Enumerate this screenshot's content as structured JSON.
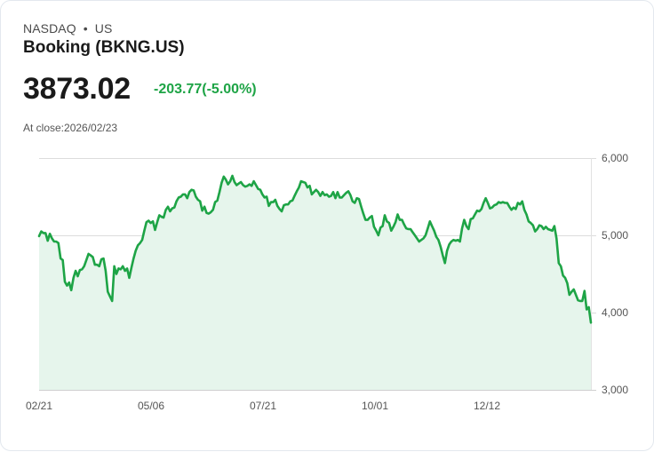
{
  "header": {
    "exchange": "NASDAQ",
    "separator": "•",
    "region": "US",
    "title": "Booking (BKNG.US)",
    "price": "3873.02",
    "change": "-203.77(-5.00%)",
    "close_label": "At close:2026/02/23"
  },
  "colors": {
    "line": "#1ea446",
    "fill": "#e6f5ec",
    "grid": "#dcdcdc",
    "change_text": "#1ea446"
  },
  "chart_data": {
    "type": "area",
    "title": "Booking (BKNG.US)",
    "xlabel": "",
    "ylabel": "",
    "ylim": [
      3000,
      6000
    ],
    "yticks": [
      "6,000",
      "5,000",
      "4,000",
      "3,000"
    ],
    "ytick_values": [
      6000,
      5000,
      4000,
      3000
    ],
    "xticks": [
      "02/21",
      "05/06",
      "07/21",
      "10/01",
      "12/12"
    ],
    "grid": true,
    "y_axis_position": "right",
    "points": [
      [
        0,
        4990
      ],
      [
        2,
        5050
      ],
      [
        4,
        5030
      ],
      [
        6,
        5030
      ],
      [
        8,
        4930
      ],
      [
        10,
        5020
      ],
      [
        12,
        4960
      ],
      [
        14,
        4920
      ],
      [
        16,
        4920
      ],
      [
        18,
        4900
      ],
      [
        20,
        4700
      ],
      [
        22,
        4680
      ],
      [
        24,
        4400
      ],
      [
        26,
        4350
      ],
      [
        28,
        4390
      ],
      [
        30,
        4290
      ],
      [
        32,
        4450
      ],
      [
        34,
        4540
      ],
      [
        36,
        4470
      ],
      [
        38,
        4550
      ],
      [
        40,
        4560
      ],
      [
        42,
        4600
      ],
      [
        44,
        4680
      ],
      [
        46,
        4760
      ],
      [
        48,
        4740
      ],
      [
        50,
        4720
      ],
      [
        52,
        4620
      ],
      [
        54,
        4620
      ],
      [
        56,
        4600
      ],
      [
        58,
        4690
      ],
      [
        60,
        4700
      ],
      [
        62,
        4540
      ],
      [
        64,
        4270
      ],
      [
        66,
        4210
      ],
      [
        68,
        4150
      ],
      [
        70,
        4600
      ],
      [
        72,
        4500
      ],
      [
        74,
        4570
      ],
      [
        76,
        4560
      ],
      [
        78,
        4600
      ],
      [
        80,
        4540
      ],
      [
        82,
        4570
      ],
      [
        84,
        4450
      ],
      [
        86,
        4580
      ],
      [
        88,
        4700
      ],
      [
        90,
        4800
      ],
      [
        92,
        4870
      ],
      [
        94,
        4900
      ],
      [
        96,
        4940
      ],
      [
        98,
        5060
      ],
      [
        100,
        5170
      ],
      [
        102,
        5190
      ],
      [
        104,
        5160
      ],
      [
        106,
        5180
      ],
      [
        108,
        5070
      ],
      [
        110,
        5170
      ],
      [
        112,
        5260
      ],
      [
        114,
        5240
      ],
      [
        116,
        5230
      ],
      [
        118,
        5330
      ],
      [
        120,
        5370
      ],
      [
        122,
        5310
      ],
      [
        124,
        5350
      ],
      [
        126,
        5360
      ],
      [
        128,
        5440
      ],
      [
        130,
        5490
      ],
      [
        132,
        5500
      ],
      [
        134,
        5530
      ],
      [
        136,
        5530
      ],
      [
        138,
        5480
      ],
      [
        140,
        5560
      ],
      [
        142,
        5590
      ],
      [
        144,
        5580
      ],
      [
        146,
        5500
      ],
      [
        148,
        5460
      ],
      [
        150,
        5440
      ],
      [
        152,
        5320
      ],
      [
        154,
        5370
      ],
      [
        156,
        5290
      ],
      [
        158,
        5280
      ],
      [
        160,
        5300
      ],
      [
        162,
        5330
      ],
      [
        164,
        5430
      ],
      [
        166,
        5450
      ],
      [
        168,
        5560
      ],
      [
        170,
        5680
      ],
      [
        172,
        5760
      ],
      [
        174,
        5720
      ],
      [
        176,
        5660
      ],
      [
        178,
        5700
      ],
      [
        180,
        5770
      ],
      [
        182,
        5690
      ],
      [
        184,
        5650
      ],
      [
        186,
        5670
      ],
      [
        188,
        5690
      ],
      [
        190,
        5650
      ],
      [
        192,
        5630
      ],
      [
        194,
        5640
      ],
      [
        196,
        5660
      ],
      [
        198,
        5640
      ],
      [
        200,
        5700
      ],
      [
        202,
        5650
      ],
      [
        204,
        5600
      ],
      [
        206,
        5590
      ],
      [
        208,
        5530
      ],
      [
        210,
        5490
      ],
      [
        212,
        5500
      ],
      [
        214,
        5380
      ],
      [
        216,
        5430
      ],
      [
        218,
        5430
      ],
      [
        220,
        5460
      ],
      [
        222,
        5380
      ],
      [
        224,
        5340
      ],
      [
        226,
        5310
      ],
      [
        228,
        5390
      ],
      [
        230,
        5400
      ],
      [
        232,
        5400
      ],
      [
        234,
        5440
      ],
      [
        236,
        5450
      ],
      [
        238,
        5510
      ],
      [
        240,
        5570
      ],
      [
        242,
        5620
      ],
      [
        244,
        5700
      ],
      [
        246,
        5690
      ],
      [
        248,
        5680
      ],
      [
        250,
        5620
      ],
      [
        252,
        5640
      ],
      [
        254,
        5530
      ],
      [
        256,
        5560
      ],
      [
        258,
        5590
      ],
      [
        260,
        5560
      ],
      [
        262,
        5510
      ],
      [
        264,
        5560
      ],
      [
        266,
        5520
      ],
      [
        268,
        5530
      ],
      [
        270,
        5500
      ],
      [
        272,
        5510
      ],
      [
        274,
        5560
      ],
      [
        276,
        5480
      ],
      [
        278,
        5560
      ],
      [
        280,
        5490
      ],
      [
        282,
        5490
      ],
      [
        284,
        5520
      ],
      [
        286,
        5550
      ],
      [
        288,
        5570
      ],
      [
        290,
        5520
      ],
      [
        292,
        5440
      ],
      [
        294,
        5420
      ],
      [
        296,
        5480
      ],
      [
        298,
        5470
      ],
      [
        300,
        5370
      ],
      [
        302,
        5280
      ],
      [
        304,
        5200
      ],
      [
        306,
        5200
      ],
      [
        308,
        5230
      ],
      [
        310,
        5250
      ],
      [
        312,
        5110
      ],
      [
        314,
        5060
      ],
      [
        316,
        5000
      ],
      [
        318,
        5100
      ],
      [
        320,
        5120
      ],
      [
        322,
        5260
      ],
      [
        324,
        5180
      ],
      [
        326,
        5160
      ],
      [
        328,
        5060
      ],
      [
        330,
        5110
      ],
      [
        332,
        5170
      ],
      [
        334,
        5270
      ],
      [
        336,
        5200
      ],
      [
        338,
        5200
      ],
      [
        340,
        5140
      ],
      [
        342,
        5090
      ],
      [
        344,
        5080
      ],
      [
        346,
        5080
      ],
      [
        348,
        5040
      ],
      [
        350,
        5000
      ],
      [
        352,
        4960
      ],
      [
        354,
        4920
      ],
      [
        356,
        4940
      ],
      [
        358,
        4960
      ],
      [
        360,
        5000
      ],
      [
        362,
        5090
      ],
      [
        364,
        5180
      ],
      [
        366,
        5120
      ],
      [
        368,
        5060
      ],
      [
        370,
        4980
      ],
      [
        372,
        4940
      ],
      [
        374,
        4850
      ],
      [
        376,
        4740
      ],
      [
        378,
        4640
      ],
      [
        380,
        4800
      ],
      [
        382,
        4880
      ],
      [
        384,
        4920
      ],
      [
        386,
        4940
      ],
      [
        388,
        4930
      ],
      [
        390,
        4940
      ],
      [
        392,
        4920
      ],
      [
        394,
        5090
      ],
      [
        396,
        5200
      ],
      [
        398,
        5120
      ],
      [
        400,
        5080
      ],
      [
        402,
        5210
      ],
      [
        404,
        5220
      ],
      [
        406,
        5270
      ],
      [
        408,
        5320
      ],
      [
        410,
        5310
      ],
      [
        412,
        5340
      ],
      [
        414,
        5420
      ],
      [
        416,
        5480
      ],
      [
        418,
        5420
      ],
      [
        420,
        5350
      ],
      [
        422,
        5360
      ],
      [
        424,
        5390
      ],
      [
        426,
        5400
      ],
      [
        428,
        5430
      ],
      [
        430,
        5420
      ],
      [
        432,
        5430
      ],
      [
        434,
        5420
      ],
      [
        436,
        5420
      ],
      [
        438,
        5370
      ],
      [
        440,
        5330
      ],
      [
        442,
        5360
      ],
      [
        444,
        5340
      ],
      [
        446,
        5420
      ],
      [
        448,
        5400
      ],
      [
        450,
        5440
      ],
      [
        452,
        5330
      ],
      [
        454,
        5270
      ],
      [
        456,
        5180
      ],
      [
        458,
        5160
      ],
      [
        460,
        5130
      ],
      [
        462,
        5050
      ],
      [
        464,
        5080
      ],
      [
        466,
        5130
      ],
      [
        468,
        5120
      ],
      [
        470,
        5080
      ],
      [
        472,
        5110
      ],
      [
        474,
        5080
      ],
      [
        476,
        5070
      ],
      [
        478,
        5060
      ],
      [
        480,
        5120
      ],
      [
        482,
        4960
      ],
      [
        484,
        4640
      ],
      [
        486,
        4600
      ],
      [
        488,
        4480
      ],
      [
        490,
        4450
      ],
      [
        492,
        4380
      ],
      [
        494,
        4230
      ],
      [
        496,
        4270
      ],
      [
        498,
        4300
      ],
      [
        500,
        4230
      ],
      [
        502,
        4160
      ],
      [
        504,
        4150
      ],
      [
        506,
        4150
      ],
      [
        508,
        4280
      ],
      [
        510,
        4040
      ],
      [
        512,
        4070
      ],
      [
        514,
        3870
      ]
    ]
  }
}
